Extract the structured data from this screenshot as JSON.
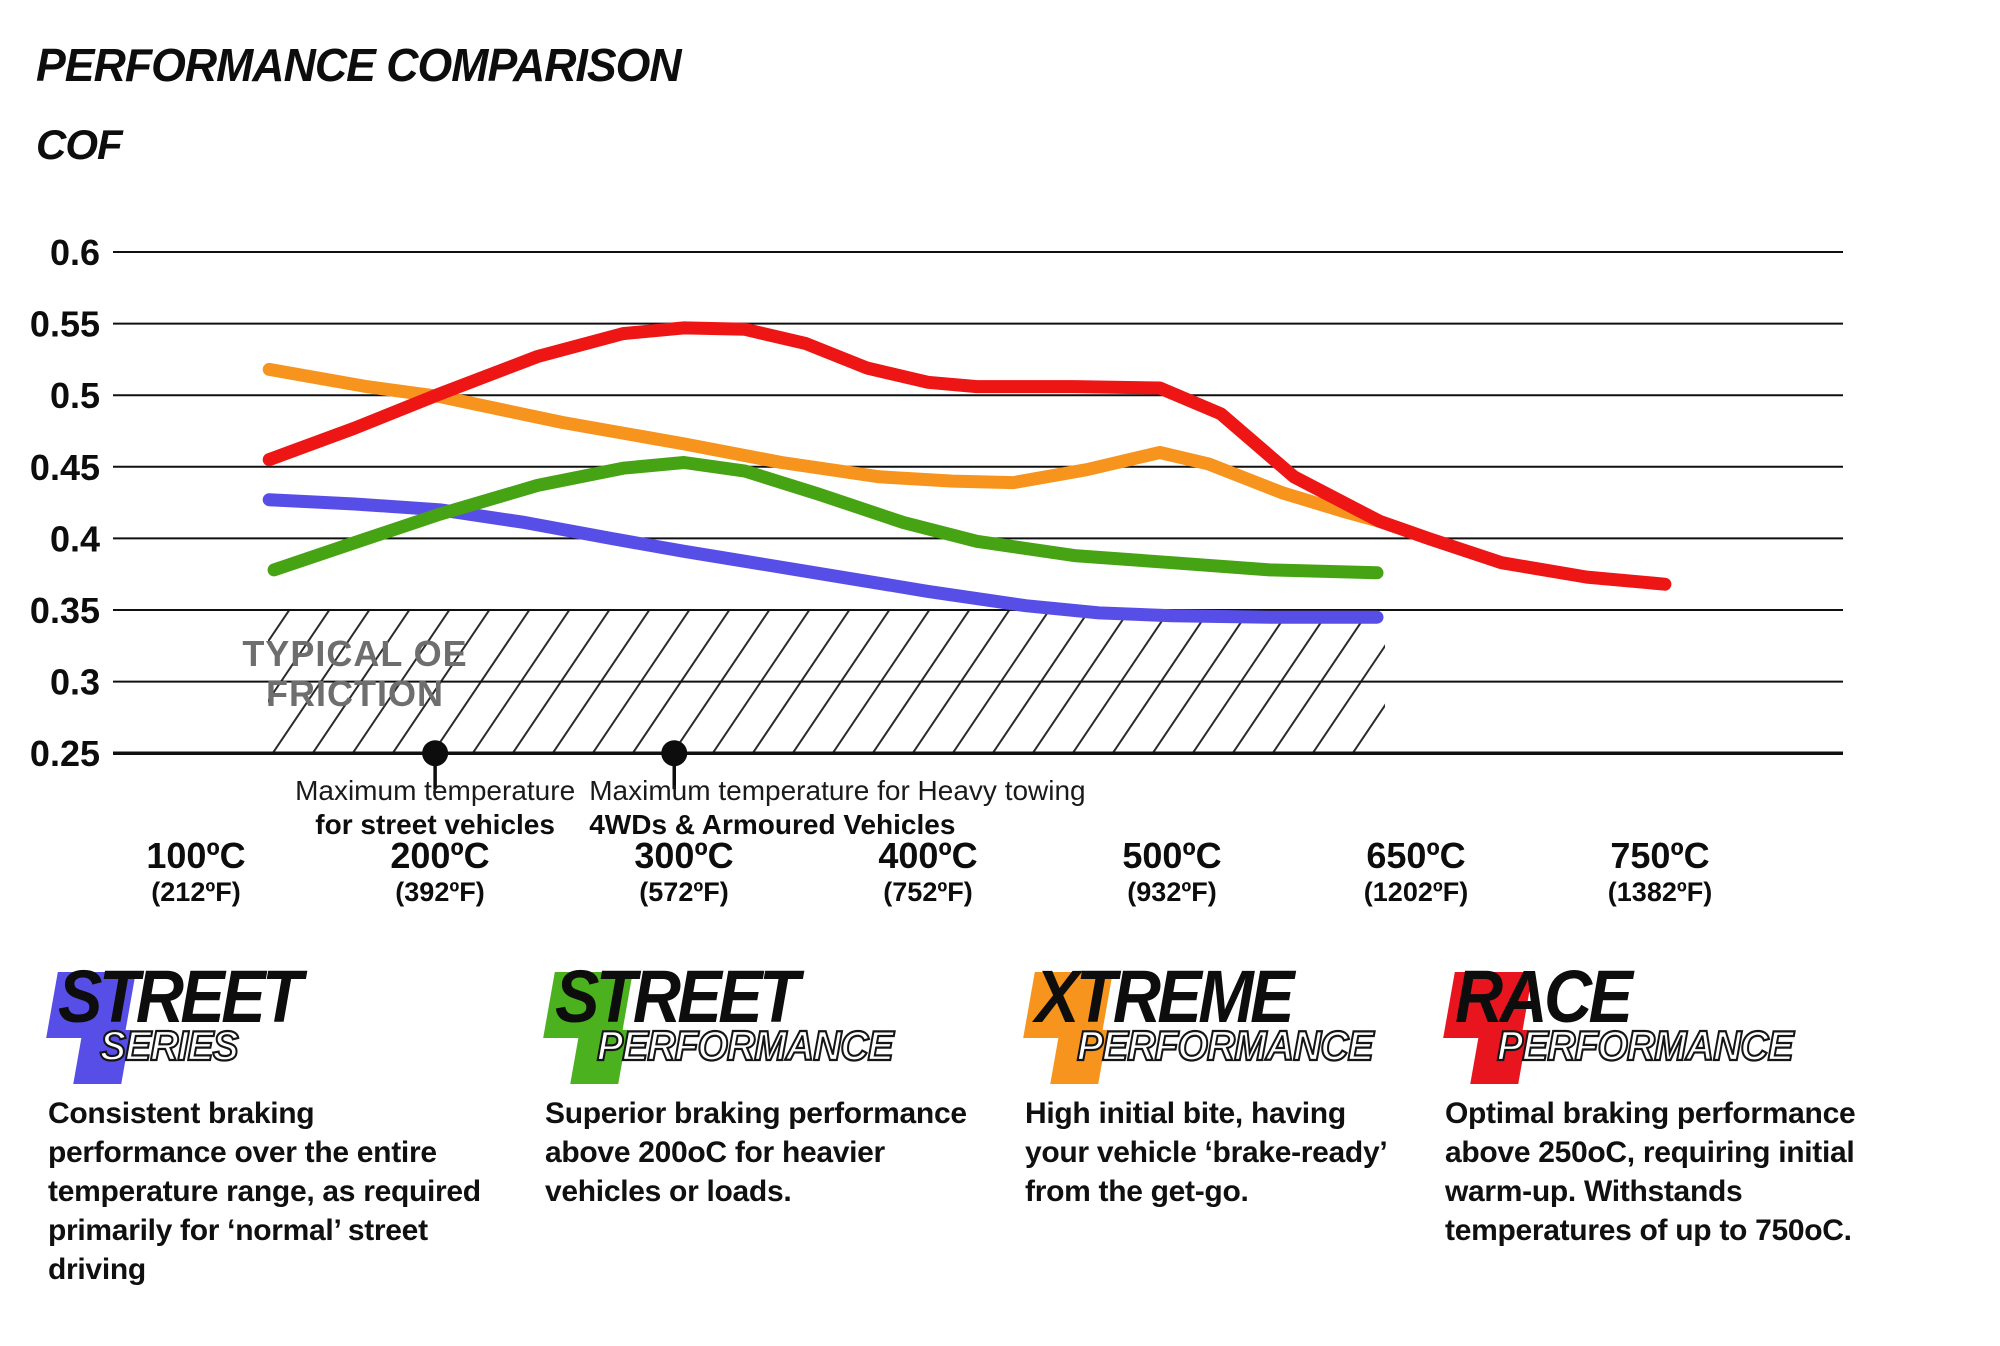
{
  "title": "PERFORMANCE COMPARISON",
  "y_axis": {
    "label": "COF",
    "ticks": [
      "0.6",
      "0.55",
      "0.5",
      "0.45",
      "0.4",
      "0.35",
      "0.3",
      "0.25"
    ]
  },
  "x_axis": {
    "categories": [
      {
        "label": "100ºC",
        "fahrenheit": "(212ºF)"
      },
      {
        "label": "200ºC",
        "fahrenheit": "(392ºF)"
      },
      {
        "label": "300ºC",
        "fahrenheit": "(572ºF)"
      },
      {
        "label": "400ºC",
        "fahrenheit": "(752ºF)"
      },
      {
        "label": "500ºC",
        "fahrenheit": "(932ºF)"
      },
      {
        "label": "650ºC",
        "fahrenheit": "(1202ºF)"
      },
      {
        "label": "750ºC",
        "fahrenheit": "(1382ºF)"
      }
    ]
  },
  "chart_data": {
    "type": "line",
    "title": "PERFORMANCE COMPARISON",
    "ylabel": "COF",
    "x_categories_c": [
      100,
      200,
      300,
      400,
      500,
      650,
      750
    ],
    "ylim": [
      0.25,
      0.6
    ],
    "y_tick_step": 0.05,
    "grid": "horizontal",
    "legend_position": "bottom",
    "oe_band": {
      "line1": "TYPICAL OE",
      "line2": "FRICTION",
      "cof_range": [
        0.25,
        0.35
      ],
      "text_color": "#6e6e6e"
    },
    "series": [
      {
        "name": "Street Series",
        "color": "#574EE8",
        "points": [
          [
            0.3,
            0.427
          ],
          [
            0.65,
            0.424
          ],
          [
            1.0,
            0.42
          ],
          [
            1.35,
            0.411
          ],
          [
            1.7,
            0.4
          ],
          [
            2.0,
            0.391
          ],
          [
            2.5,
            0.377
          ],
          [
            3.0,
            0.363
          ],
          [
            3.4,
            0.353
          ],
          [
            3.7,
            0.348
          ],
          [
            4.0,
            0.346
          ],
          [
            4.4,
            0.345
          ],
          [
            4.84,
            0.345
          ]
        ]
      },
      {
        "name": "Street Performance",
        "color": "#46A414",
        "points": [
          [
            0.32,
            0.378
          ],
          [
            0.65,
            0.397
          ],
          [
            1.0,
            0.417
          ],
          [
            1.4,
            0.437
          ],
          [
            1.75,
            0.449
          ],
          [
            2.0,
            0.453
          ],
          [
            2.25,
            0.447
          ],
          [
            2.55,
            0.431
          ],
          [
            2.9,
            0.411
          ],
          [
            3.2,
            0.398
          ],
          [
            3.6,
            0.388
          ],
          [
            4.0,
            0.383
          ],
          [
            4.4,
            0.378
          ],
          [
            4.84,
            0.376
          ]
        ]
      },
      {
        "name": "Xtreme Performance",
        "color": "#F7941E",
        "points": [
          [
            0.3,
            0.518
          ],
          [
            0.7,
            0.506
          ],
          [
            1.0,
            0.499
          ],
          [
            1.5,
            0.481
          ],
          [
            2.0,
            0.466
          ],
          [
            2.4,
            0.453
          ],
          [
            2.8,
            0.443
          ],
          [
            3.1,
            0.44
          ],
          [
            3.35,
            0.439
          ],
          [
            3.65,
            0.448
          ],
          [
            3.95,
            0.46
          ],
          [
            4.15,
            0.452
          ],
          [
            4.45,
            0.432
          ],
          [
            4.7,
            0.419
          ],
          [
            4.85,
            0.412
          ]
        ]
      },
      {
        "name": "Race Performance",
        "color": "#EE1515",
        "points": [
          [
            0.3,
            0.455
          ],
          [
            0.65,
            0.477
          ],
          [
            1.0,
            0.501
          ],
          [
            1.4,
            0.527
          ],
          [
            1.75,
            0.543
          ],
          [
            2.0,
            0.547
          ],
          [
            2.25,
            0.546
          ],
          [
            2.5,
            0.536
          ],
          [
            2.75,
            0.519
          ],
          [
            3.0,
            0.509
          ],
          [
            3.2,
            0.506
          ],
          [
            3.6,
            0.506
          ],
          [
            3.95,
            0.505
          ],
          [
            4.2,
            0.487
          ],
          [
            4.5,
            0.443
          ],
          [
            4.85,
            0.412
          ],
          [
            5.05,
            0.4
          ],
          [
            5.35,
            0.383
          ],
          [
            5.7,
            0.373
          ],
          [
            6.02,
            0.368
          ]
        ]
      }
    ],
    "annotations": [
      {
        "x_axis_pos": 0.98,
        "cof": 0.25,
        "align": "middle",
        "line1": "Maximum temperature",
        "line2": "for street vehicles"
      },
      {
        "x_axis_pos": 1.96,
        "cof": 0.25,
        "align": "start",
        "line1": "Maximum temperature for Heavy towing",
        "line2": "4WDs & Armoured Vehicles"
      }
    ]
  },
  "legend": [
    {
      "word1": "STREET",
      "word2": "SERIES",
      "color": "#574EE8",
      "description": "Consistent braking performance over the entire temperature range, as required primarily for ‘normal’ street driving"
    },
    {
      "word1": "STREET",
      "word2": "PERFORMANCE",
      "color": "#4CB11E",
      "description": "Superior braking performance above 200oC for heavier vehicles or loads."
    },
    {
      "word1": "XTREME",
      "word2": "PERFORMANCE",
      "color": "#F7941E",
      "description": "High initial bite, having your vehicle ‘brake-ready’ from the get-go."
    },
    {
      "word1": "RACE",
      "word2": "PERFORMANCE",
      "color": "#E8151E",
      "description": "Optimal braking performance above 250oC, requiring initial warm-up. Withstands temperatures of up to 750oC."
    }
  ]
}
